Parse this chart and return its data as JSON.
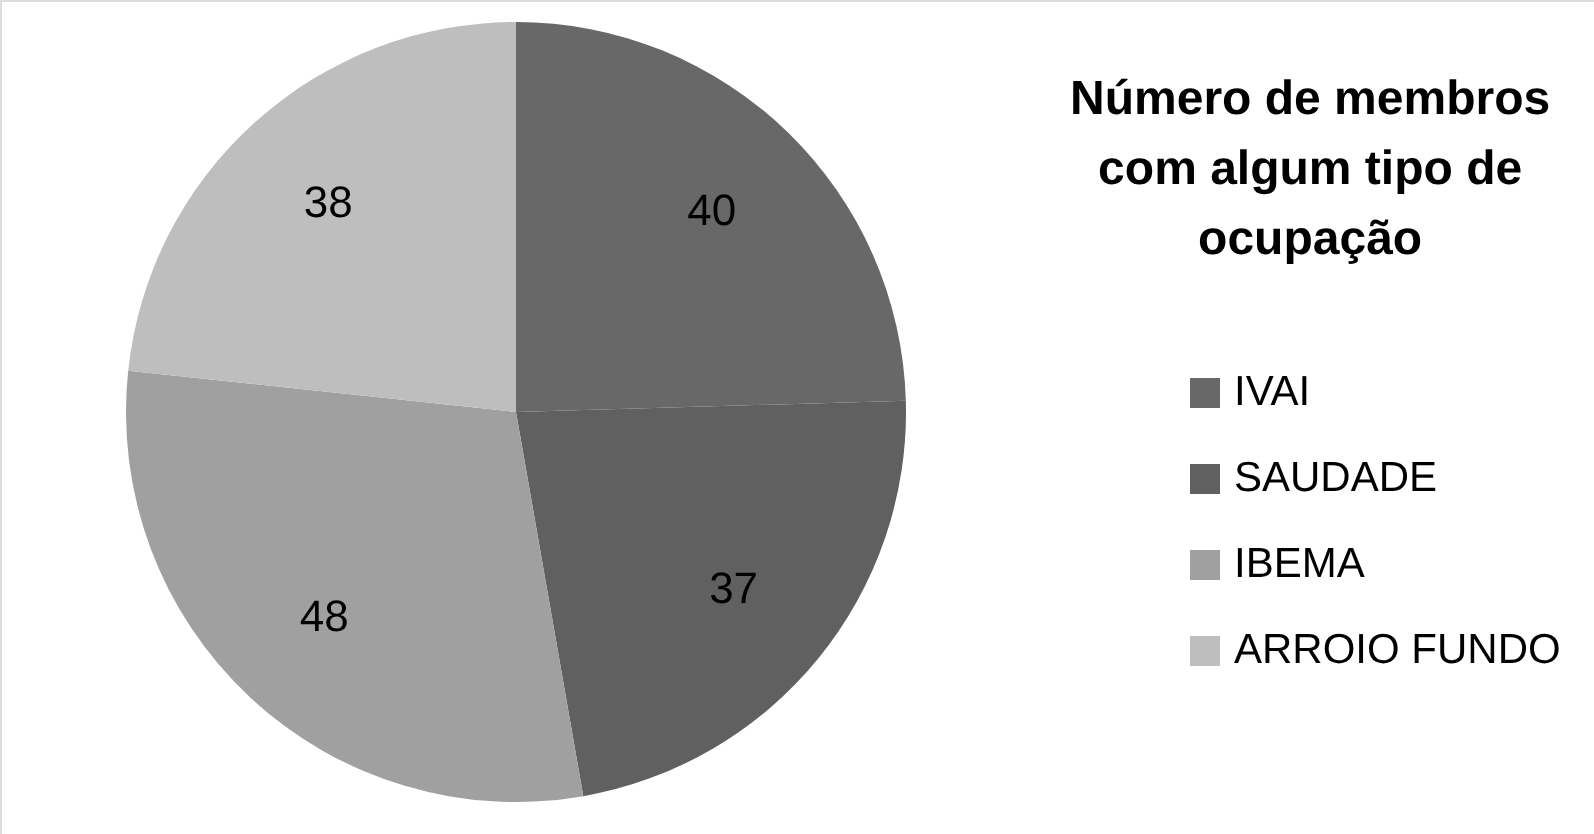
{
  "chart_data": {
    "type": "pie",
    "title": "Número de membros com algum tipo de ocupação",
    "categories": [
      "IVAI",
      "SAUDADE",
      "IBEMA",
      "ARROIO FUNDO"
    ],
    "values": [
      40,
      37,
      48,
      38
    ],
    "colors": [
      "#686868",
      "#606060",
      "#a0a0a0",
      "#bebebe"
    ],
    "data_labels": true,
    "legend": "right"
  }
}
